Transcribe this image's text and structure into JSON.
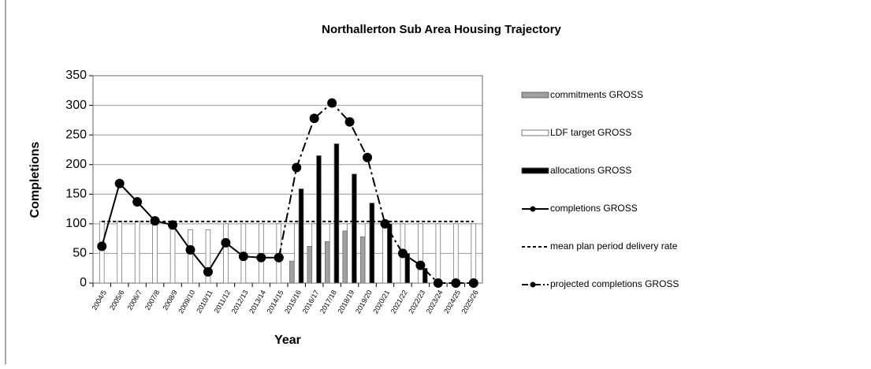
{
  "chart_data": {
    "type": "bar",
    "title": "Northallerton Sub Area Housing Trajectory",
    "x_label": "Year",
    "y_label": "Completions",
    "categories": [
      "2004/5",
      "2005/6",
      "2006/7",
      "2007/8",
      "2008/9",
      "2009/10",
      "2010/11",
      "2011/12",
      "2012/13",
      "2013/14",
      "2014/15",
      "2015/16",
      "2016/17",
      "2017/18",
      "2018/19",
      "2019/20",
      "2020/21",
      "2021/22",
      "2022/23",
      "2023/24",
      "2024/25",
      "2025/26"
    ],
    "series": [
      {
        "name": "commitments GROSS",
        "kind": "bar",
        "color": "#a0a0a0",
        "values": [
          0,
          0,
          0,
          0,
          0,
          0,
          0,
          0,
          0,
          0,
          0,
          37,
          62,
          70,
          88,
          78,
          0,
          0,
          0,
          0,
          0,
          0
        ]
      },
      {
        "name": "LDF target GROSS",
        "kind": "bar",
        "color": "#ffffff",
        "values": [
          104,
          104,
          104,
          104,
          104,
          90,
          90,
          100,
          100,
          100,
          100,
          100,
          100,
          100,
          100,
          100,
          100,
          100,
          100,
          100,
          100,
          100
        ]
      },
      {
        "name": "allocations GROSS",
        "kind": "bar",
        "color": "#000000",
        "values": [
          0,
          0,
          0,
          0,
          0,
          0,
          0,
          0,
          0,
          0,
          0,
          159,
          215,
          235,
          184,
          135,
          100,
          50,
          25,
          0,
          0,
          0
        ]
      },
      {
        "name": "completions GROSS",
        "kind": "line",
        "color": "#000000",
        "dash": "",
        "markers": true,
        "values": [
          62,
          168,
          137,
          105,
          98,
          56,
          19,
          68,
          45,
          43,
          43,
          null,
          null,
          null,
          null,
          null,
          null,
          null,
          null,
          null,
          null,
          null
        ]
      },
      {
        "name": "mean plan period delivery rate",
        "kind": "line",
        "color": "#000000",
        "dash": "4,3",
        "markers": false,
        "values": [
          104,
          104,
          104,
          104,
          104,
          104,
          104,
          104,
          104,
          104,
          104,
          104,
          104,
          104,
          104,
          104,
          104,
          104,
          104,
          104,
          104,
          104
        ]
      },
      {
        "name": "projected completions GROSS",
        "kind": "line",
        "color": "#000000",
        "dash": "12,4,3,4",
        "markers": true,
        "values": [
          null,
          null,
          null,
          null,
          null,
          null,
          null,
          null,
          null,
          null,
          43,
          195,
          278,
          304,
          272,
          212,
          100,
          50,
          30,
          0,
          0,
          0
        ]
      }
    ],
    "ylim": [
      0,
      350
    ],
    "yticks": [
      0,
      50,
      100,
      150,
      200,
      250,
      300,
      350
    ],
    "grid": true
  }
}
